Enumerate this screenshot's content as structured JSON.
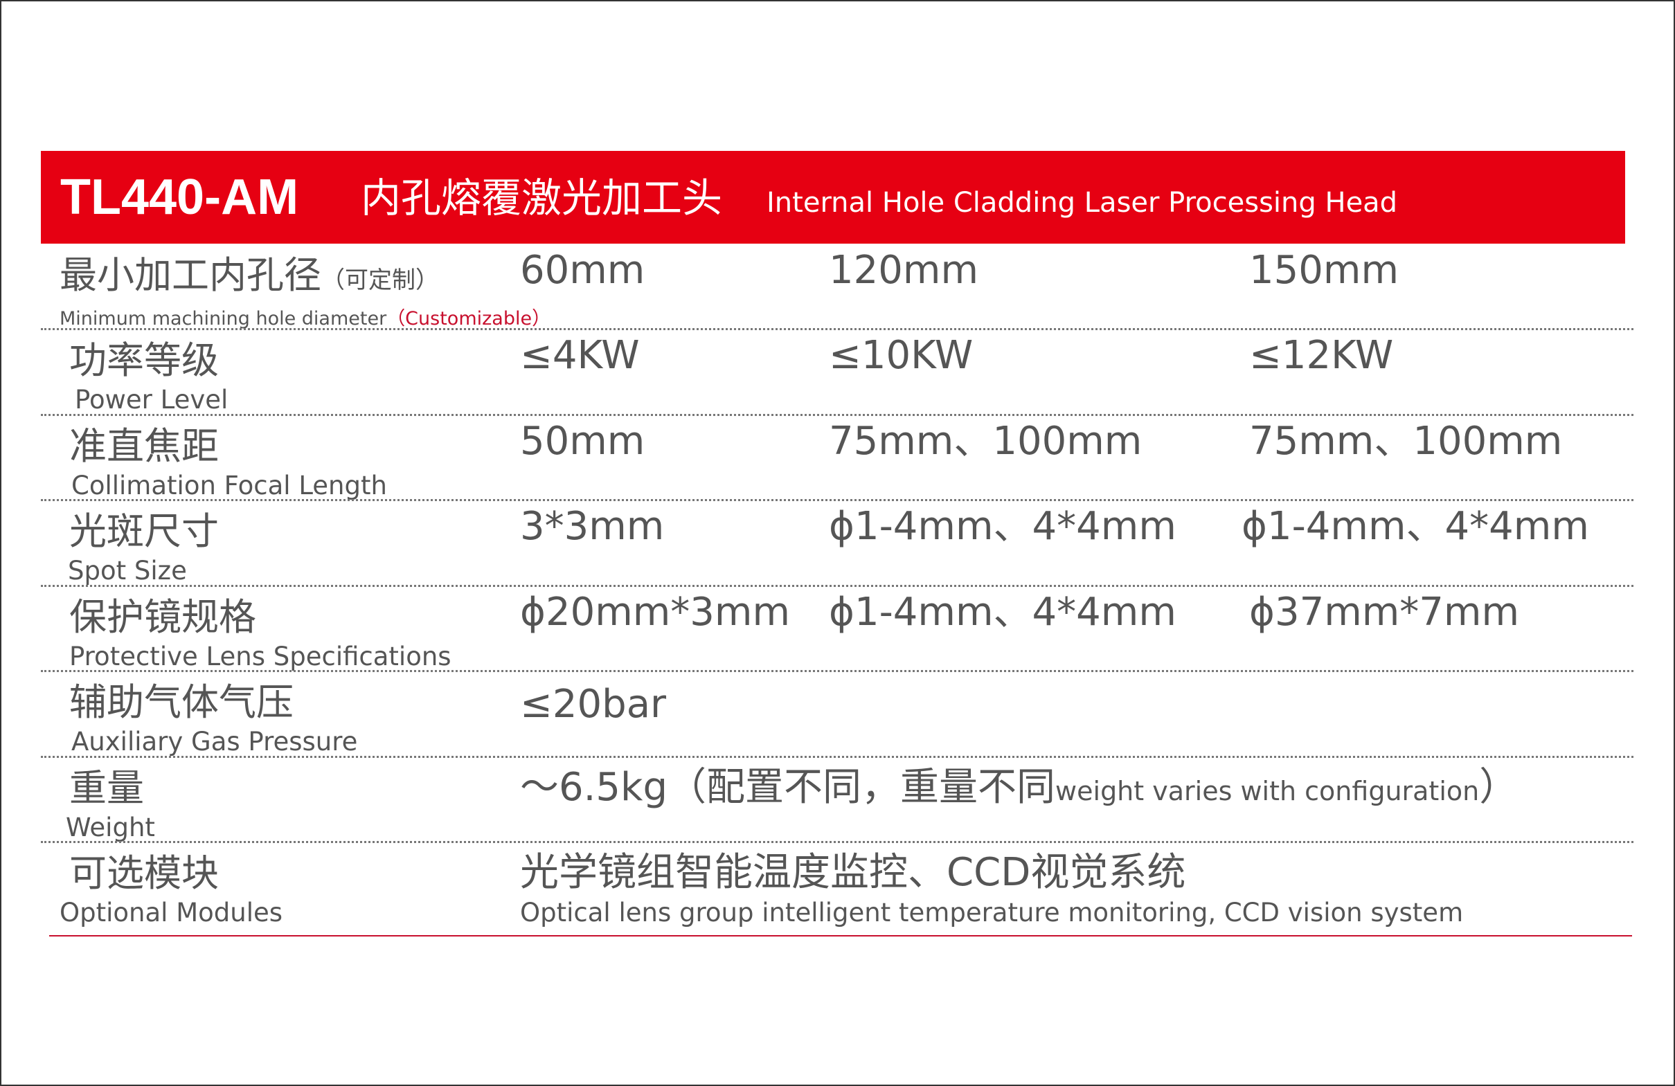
{
  "header": {
    "model": "TL440-AM",
    "title_cn": "内孔熔覆激光加工头",
    "title_en": "Internal Hole Cladding Laser Processing Head",
    "color": "#e60012"
  },
  "rows": [
    {
      "cn": "最小加工内孔径",
      "cn_note": "（可定制）",
      "en": "Minimum machining hole diameter",
      "en_note": "（Customizable）",
      "values": [
        "60mm",
        "120mm",
        "150mm"
      ]
    },
    {
      "cn": "功率等级",
      "en": "Power Level",
      "values": [
        "≤4KW",
        "≤10KW",
        "≤12KW"
      ]
    },
    {
      "cn": "准直焦距",
      "en": "Collimation Focal Length",
      "values": [
        "50mm",
        "75mm、100mm",
        "75mm、100mm"
      ]
    },
    {
      "cn": "光斑尺寸",
      "en": "Spot Size",
      "values": [
        "3*3mm",
        "ϕ1-4mm、4*4mm",
        "ϕ1-4mm、4*4mm"
      ]
    },
    {
      "cn": "保护镜规格",
      "en": "Protective Lens Specifications",
      "values": [
        "ϕ20mm*3mm",
        "ϕ1-4mm、4*4mm",
        "ϕ37mm*7mm"
      ]
    },
    {
      "cn": "辅助气体气压",
      "en": "Auxiliary Gas Pressure",
      "values": [
        "≤20bar"
      ]
    },
    {
      "cn": "重量",
      "en": "Weight",
      "value_main": "～6.5kg（配置不同，重量不同",
      "value_en": "weight varies with configuration",
      "value_close": "）"
    },
    {
      "cn": "可选模块",
      "en": "Optional Modules",
      "value_cn": "光学镜组智能温度监控、CCD视觉系统",
      "value_en": "Optical lens group intelligent temperature monitoring, CCD vision system"
    }
  ]
}
